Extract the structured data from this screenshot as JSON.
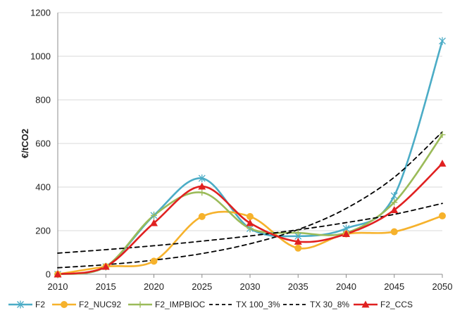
{
  "chart_data": {
    "type": "line",
    "title": "",
    "xlabel": "",
    "ylabel": "€/tCO2",
    "xlim": [
      2010,
      2050
    ],
    "ylim": [
      0,
      1200
    ],
    "x": [
      2010,
      2015,
      2020,
      2025,
      2030,
      2035,
      2040,
      2045,
      2050
    ],
    "x_ticks": [
      "2010",
      "2015",
      "2020",
      "2025",
      "2030",
      "2035",
      "2040",
      "2045",
      "2050"
    ],
    "y_ticks": [
      "0",
      "200",
      "400",
      "600",
      "800",
      "1000",
      "1200"
    ],
    "y_tick_values": [
      0,
      200,
      400,
      600,
      800,
      1000,
      1200
    ],
    "grid": "horizontal",
    "legend_position": "bottom",
    "series": [
      {
        "name": "F2",
        "color": "#4bacc6",
        "marker": "asterisk",
        "dash": "solid",
        "values": [
          0,
          35,
          270,
          440,
          210,
          175,
          210,
          360,
          1070
        ]
      },
      {
        "name": "F2_NUC92",
        "color": "#f6b22c",
        "marker": "circle",
        "dash": "solid",
        "values": [
          0,
          35,
          60,
          265,
          265,
          120,
          185,
          195,
          268
        ]
      },
      {
        "name": "F2_IMPBIOC",
        "color": "#9bbb59",
        "marker": "plus",
        "dash": "solid",
        "values": [
          0,
          35,
          270,
          375,
          210,
          190,
          190,
          330,
          640
        ]
      },
      {
        "name": "TX 100_3%",
        "color": "#000000",
        "marker": "none",
        "dash": "dashed",
        "values": [
          97,
          113,
          131,
          152,
          176,
          204,
          237,
          275,
          325
        ]
      },
      {
        "name": "TX 30_8%",
        "color": "#000000",
        "marker": "none",
        "dash": "dashed",
        "values": [
          30,
          44,
          65,
          95,
          140,
          205,
          302,
          445,
          653
        ]
      },
      {
        "name": "F2_CCS",
        "color": "#e02020",
        "marker": "triangle",
        "dash": "solid",
        "values": [
          0,
          35,
          235,
          403,
          235,
          150,
          185,
          295,
          508
        ]
      }
    ]
  }
}
